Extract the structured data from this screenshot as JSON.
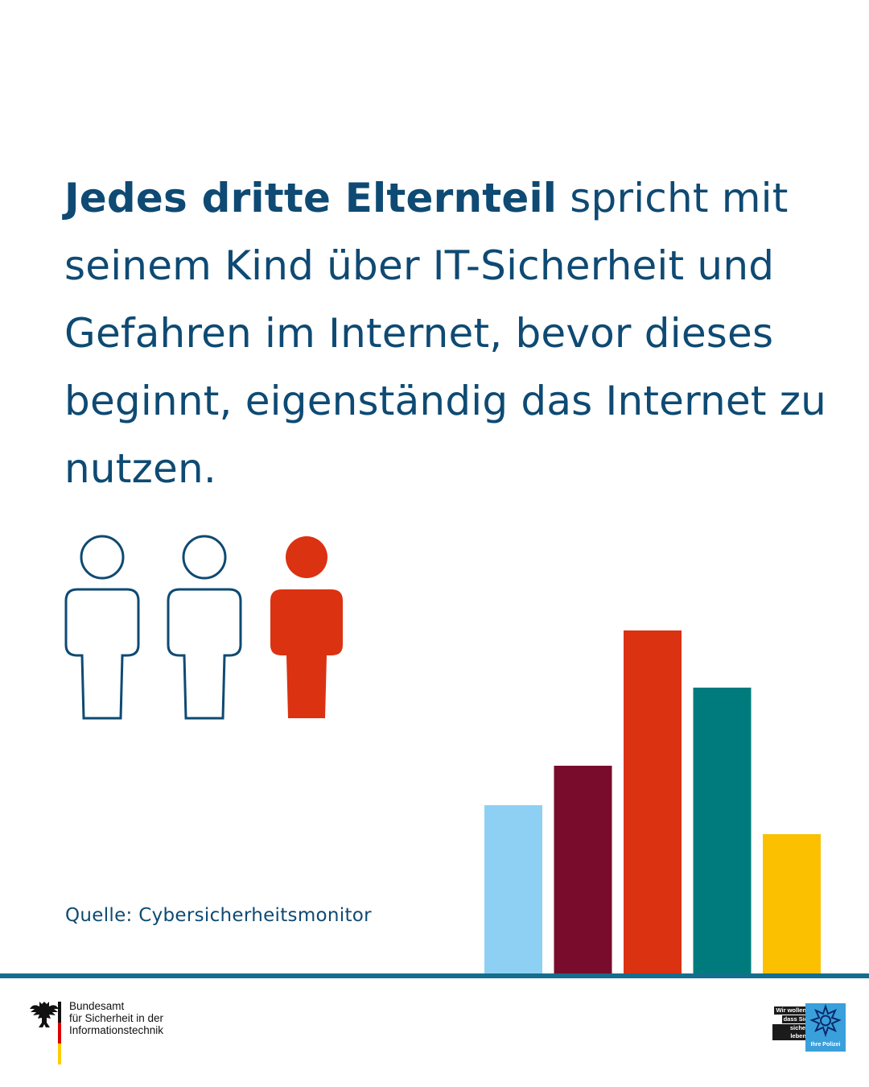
{
  "headline": {
    "strong": "Jedes dritte Elternteil",
    "rest": " spricht mit seinem Kind über IT-Sicherheit und Gefahren im Internet, bevor dieses beginnt, eigenständig das Internet zu nutzen."
  },
  "pictogram": {
    "total_figures": 3,
    "highlighted_figures": 1,
    "outline_color": "#0e4a73",
    "highlight_color": "#db3212",
    "icon": "person-icon"
  },
  "decorative_bars": {
    "values": [
      209,
      258,
      426,
      355,
      173
    ],
    "colors": [
      "#8ed0f4",
      "#790c2c",
      "#db3212",
      "#007b7d",
      "#fbc000"
    ]
  },
  "source": "Quelle: Cybersicherheitsmonitor",
  "footer": {
    "rule_color": "#146e8c",
    "bsi": {
      "line1": "Bundesamt",
      "line2": "für Sicherheit in der",
      "line3": "Informationstechnik",
      "icon": "federal-eagle-icon"
    },
    "police": {
      "line1": "Wir wollen,",
      "line2": "dass Sie",
      "line3": "sicher leben.",
      "badge": "Ihre Polizei",
      "icon": "police-star-icon"
    }
  }
}
